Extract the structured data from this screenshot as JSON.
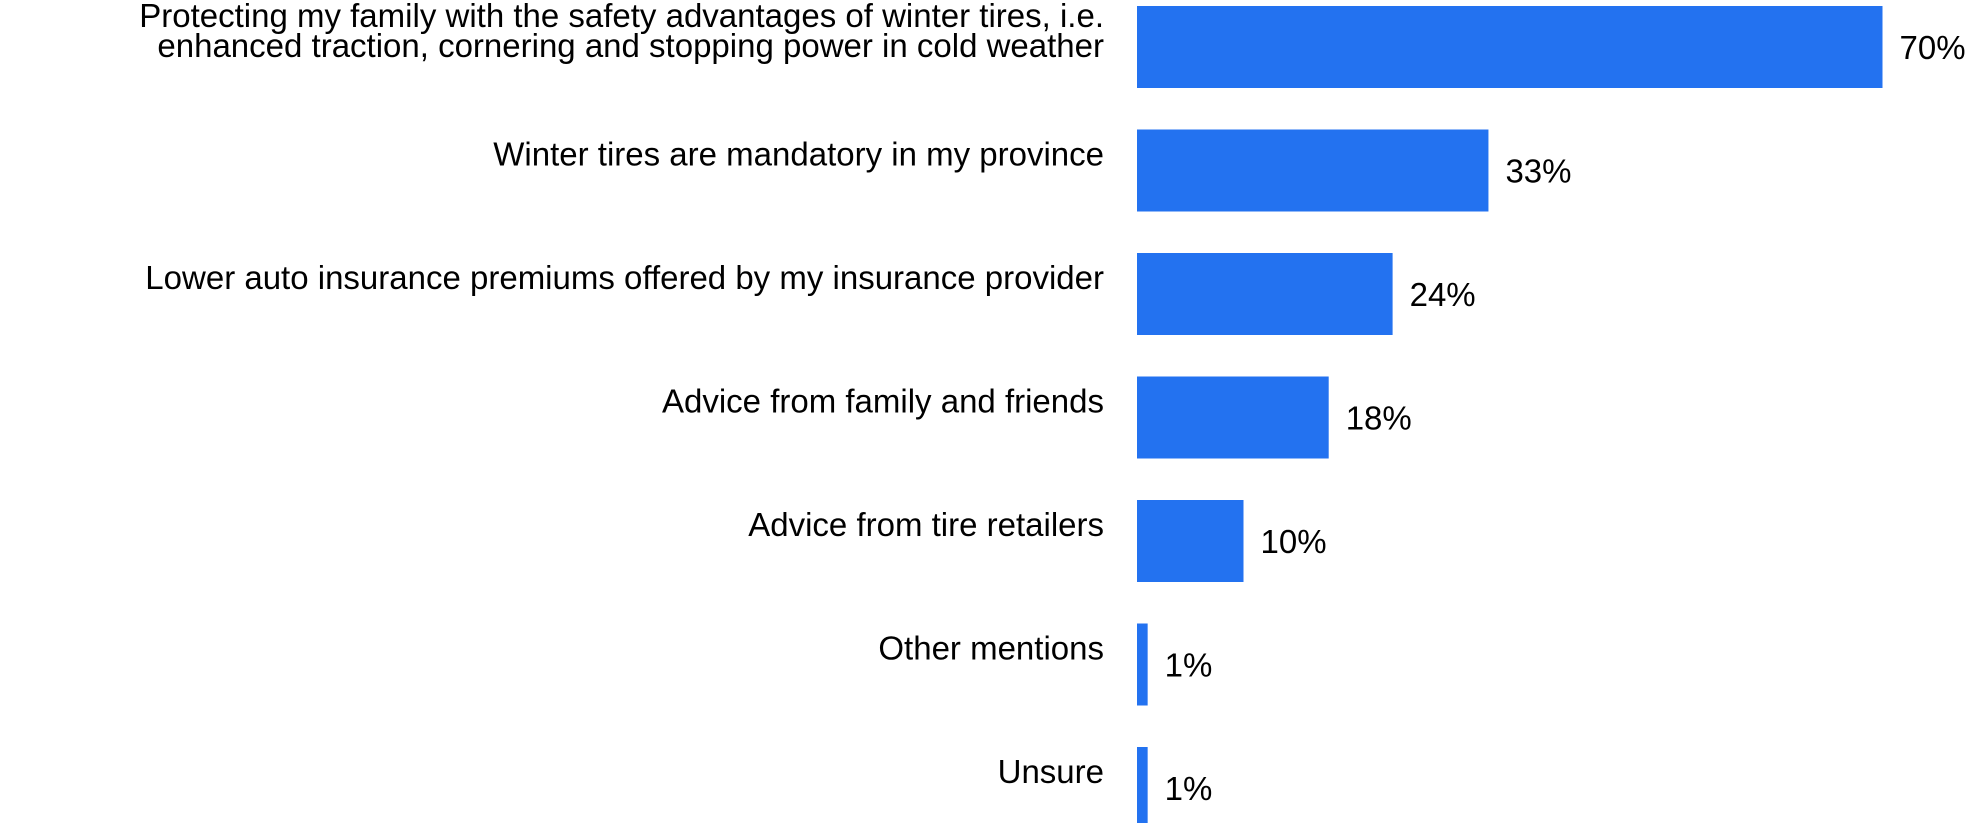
{
  "chart_data": {
    "type": "bar",
    "orientation": "horizontal",
    "title": "",
    "xlabel": "",
    "ylabel": "",
    "xlim": [
      0,
      70
    ],
    "grid": false,
    "legend": "none",
    "value_suffix": "%",
    "bar_color": "#2372f0",
    "categories": [
      [
        "Protecting my family with the safety advantages of winter tires, i.e.",
        "enhanced traction, cornering and stopping power in cold weather"
      ],
      [
        "Winter tires are mandatory in my province"
      ],
      [
        "Lower auto insurance premiums offered by my insurance provider"
      ],
      [
        "Advice from family and friends"
      ],
      [
        "Advice from tire retailers"
      ],
      [
        "Other mentions"
      ],
      [
        "Unsure"
      ]
    ],
    "values": [
      70,
      33,
      24,
      18,
      10,
      1,
      1
    ]
  }
}
